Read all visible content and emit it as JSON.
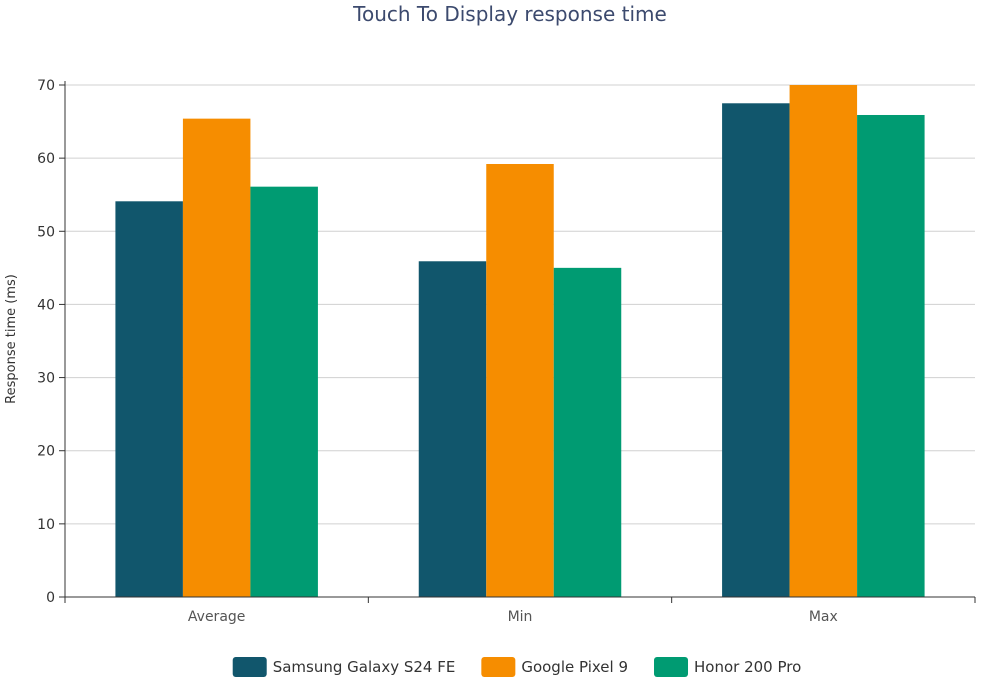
{
  "chart_data": {
    "type": "bar",
    "title": "Touch To Display response time",
    "xlabel": "",
    "ylabel": "Response time (ms)",
    "categories": [
      "Average",
      "Min",
      "Max"
    ],
    "ylim": [
      0,
      70
    ],
    "yticks": [
      0,
      10,
      20,
      30,
      40,
      50,
      60,
      70
    ],
    "grid": true,
    "legend_position": "bottom",
    "series": [
      {
        "name": "Samsung Galaxy S24 FE",
        "color": "#11566c",
        "values": [
          54.1,
          45.9,
          67.5
        ]
      },
      {
        "name": "Google Pixel 9",
        "color": "#f68d00",
        "values": [
          65.4,
          59.2,
          70.0
        ]
      },
      {
        "name": "Honor 200 Pro",
        "color": "#009b72",
        "values": [
          56.1,
          45.0,
          65.9
        ]
      }
    ]
  }
}
